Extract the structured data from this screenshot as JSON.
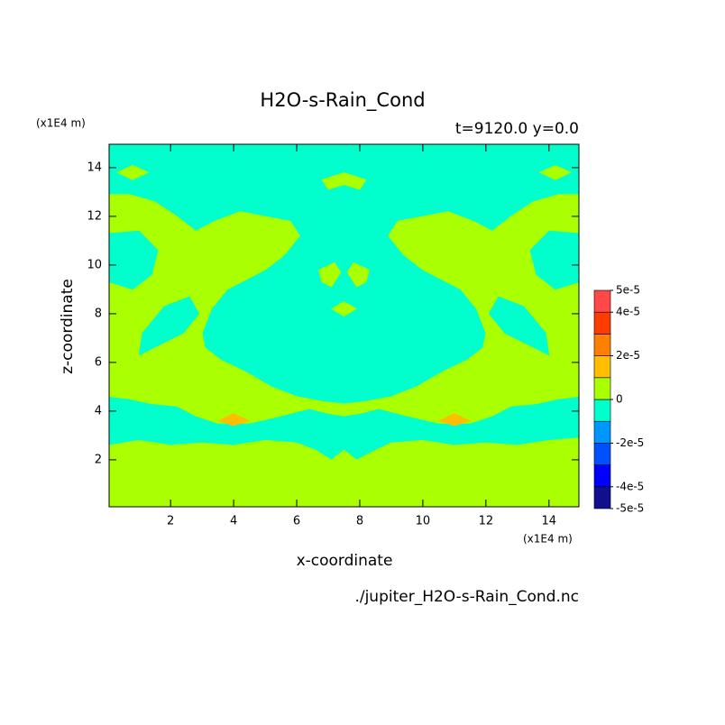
{
  "chart_data": {
    "type": "contour",
    "title": "H2O-s-Rain_Cond",
    "subtitle": "t=9120.0 y=0.0",
    "y_unit": "(x1E4 m)",
    "x_unit": "(x1E4 m)",
    "xlabel": "x-coordinate",
    "ylabel": "z-coordinate",
    "source": "./jupiter_H2O-s-Rain_Cond.nc",
    "xlim": [
      0.05,
      14.95
    ],
    "ylim": [
      0.07,
      14.96
    ],
    "xticks": [
      2,
      4,
      6,
      8,
      10,
      12,
      14
    ],
    "yticks": [
      2,
      4,
      6,
      8,
      10,
      12,
      14
    ],
    "levels": [
      -5e-05,
      -4e-05,
      -3e-05,
      -2e-05,
      -1e-05,
      0,
      1e-05,
      2e-05,
      3e-05,
      4e-05,
      5e-05
    ],
    "colors": [
      "#10108c",
      "#0000ff",
      "#0050ff",
      "#0096ff",
      "#00ffcc",
      "#aaff00",
      "#ffbe00",
      "#ff8000",
      "#ff3c00",
      "#ff4848"
    ],
    "colorbar_ticks": [
      {
        "value": 5e-05,
        "label": "5e-5"
      },
      {
        "value": 4e-05,
        "label": "4e-5"
      },
      {
        "value": 2e-05,
        "label": "2e-5"
      },
      0,
      {
        "value": -2e-05,
        "label": "-2e-5"
      },
      {
        "value": -4e-05,
        "label": "-4e-5"
      },
      {
        "value": -5e-05,
        "label": "-5e-5"
      }
    ],
    "background": -5e-06,
    "regions": [
      {
        "value": 5e-06,
        "x": [
          0.05,
          14.95,
          14.95,
          14,
          13,
          12,
          11,
          10,
          9,
          8.5,
          7.9,
          7.5,
          7.1,
          6.6,
          6,
          5,
          4,
          3,
          2,
          1,
          0.05
        ],
        "z": [
          0.07,
          0.07,
          2.9,
          2.8,
          2.6,
          2.7,
          2.6,
          2.8,
          2.7,
          2.4,
          2.0,
          2.4,
          2.0,
          2.4,
          2.7,
          2.8,
          2.6,
          2.7,
          2.6,
          2.8,
          2.6
        ]
      },
      {
        "value": 5e-06,
        "x": [
          0.05,
          0.05,
          0.7,
          1.5,
          2.2,
          2.8,
          3.4,
          4.2,
          5.0,
          5.8,
          6.1,
          5.6,
          5.0,
          4.4,
          3.8,
          3.3,
          3.0,
          3.1,
          3.6,
          4.4,
          5.2,
          6.0,
          6.8,
          7.5,
          7.5,
          7.0,
          6.4,
          5.5,
          4.5,
          3.5,
          2.8,
          2.2,
          1.4,
          0.7
        ],
        "z": [
          4.6,
          12.9,
          12.9,
          12.6,
          12.0,
          11.4,
          11.8,
          12.2,
          12.0,
          11.8,
          11.2,
          10.4,
          9.8,
          9.4,
          9.0,
          8.2,
          7.2,
          6.6,
          6.1,
          5.6,
          5.0,
          4.6,
          4.4,
          4.3,
          3.8,
          3.9,
          4.1,
          3.8,
          3.5,
          3.5,
          3.8,
          4.2,
          4.3,
          4.5
        ]
      },
      {
        "value": 5e-06,
        "x": [
          14.95,
          14.95,
          14.3,
          13.5,
          12.8,
          12.2,
          11.6,
          10.8,
          10.0,
          9.2,
          8.9,
          9.4,
          10.0,
          10.6,
          11.2,
          11.7,
          12.0,
          11.9,
          11.4,
          10.6,
          9.8,
          9.0,
          8.2,
          7.5,
          7.5,
          8.0,
          8.6,
          9.5,
          10.5,
          11.5,
          12.2,
          12.8,
          13.6,
          14.3
        ],
        "z": [
          4.6,
          12.9,
          12.9,
          12.6,
          12.0,
          11.4,
          11.8,
          12.2,
          12.0,
          11.8,
          11.2,
          10.4,
          9.8,
          9.4,
          9.0,
          8.2,
          7.2,
          6.6,
          6.1,
          5.6,
          5.0,
          4.6,
          4.4,
          4.3,
          3.8,
          3.9,
          4.1,
          3.8,
          3.5,
          3.5,
          3.8,
          4.2,
          4.3,
          4.5
        ]
      },
      {
        "value": -5e-06,
        "x": [
          0.05,
          1.0,
          1.6,
          1.4,
          0.8,
          0.05
        ],
        "z": [
          11.3,
          11.4,
          10.6,
          9.6,
          9.0,
          9.3
        ]
      },
      {
        "value": -5e-06,
        "x": [
          14.95,
          14.0,
          13.4,
          13.6,
          14.2,
          14.95
        ],
        "z": [
          11.3,
          11.4,
          10.6,
          9.6,
          9.0,
          9.3
        ]
      },
      {
        "value": -5e-06,
        "x": [
          1.0,
          2.4,
          2.9,
          2.6,
          1.8,
          1.1
        ],
        "z": [
          6.3,
          7.2,
          8.0,
          8.7,
          8.3,
          7.2
        ]
      },
      {
        "value": -5e-06,
        "x": [
          14.0,
          12.6,
          12.1,
          12.4,
          13.2,
          13.9
        ],
        "z": [
          6.3,
          7.2,
          8.0,
          8.7,
          8.3,
          7.2
        ]
      },
      {
        "value": 5e-06,
        "x": [
          0.3,
          0.8,
          1.3,
          0.8
        ],
        "z": [
          13.8,
          14.1,
          13.8,
          13.5
        ]
      },
      {
        "value": 5e-06,
        "x": [
          14.7,
          14.2,
          13.7,
          14.2
        ],
        "z": [
          13.8,
          14.1,
          13.8,
          13.5
        ]
      },
      {
        "value": 5e-06,
        "x": [
          6.8,
          7.5,
          8.2,
          8.0,
          7.5,
          7.0
        ],
        "z": [
          13.5,
          13.8,
          13.5,
          13.1,
          13.3,
          13.1
        ]
      },
      {
        "value": 5e-06,
        "x": [
          6.7,
          7.2,
          7.4,
          7.1,
          6.8
        ],
        "z": [
          9.8,
          10.1,
          9.7,
          9.1,
          9.3
        ]
      },
      {
        "value": 5e-06,
        "x": [
          8.3,
          7.8,
          7.6,
          7.9,
          8.2
        ],
        "z": [
          9.8,
          10.1,
          9.7,
          9.1,
          9.3
        ]
      },
      {
        "value": 5e-06,
        "x": [
          7.1,
          7.5,
          7.9,
          7.5
        ],
        "z": [
          8.2,
          8.5,
          8.2,
          7.9
        ]
      },
      {
        "value": 1.5e-05,
        "x": [
          3.5,
          4.0,
          4.5,
          4.0
        ],
        "z": [
          3.6,
          3.9,
          3.6,
          3.4
        ]
      },
      {
        "value": 1.5e-05,
        "x": [
          10.5,
          11.0,
          11.5,
          11.0
        ],
        "z": [
          3.6,
          3.9,
          3.6,
          3.4
        ]
      }
    ]
  }
}
